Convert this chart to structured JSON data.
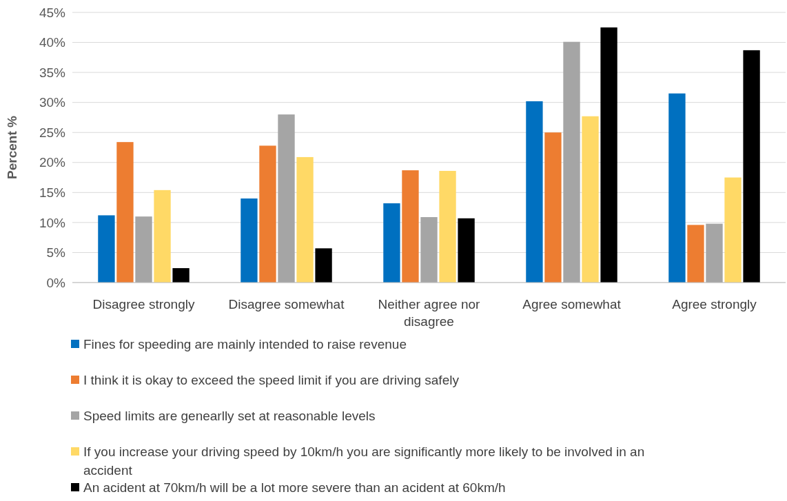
{
  "chart_data": {
    "type": "bar",
    "ylabel": "Percent %",
    "categories": [
      "Disagree strongly",
      "Disagree somewhat",
      "Neither agree nor disagree",
      "Agree somewhat",
      "Agree strongly"
    ],
    "series": [
      {
        "name": "Fines for speeding are mainly intended to raise revenue",
        "color": "#0070c0",
        "values": [
          11.2,
          14.0,
          13.2,
          30.2,
          31.5
        ]
      },
      {
        "name": "I think it is okay to exceed the speed limit if you are driving safely",
        "color": "#ed7d31",
        "values": [
          23.4,
          22.8,
          18.7,
          25.0,
          9.6
        ]
      },
      {
        "name": "Speed limits are genearlly set at reasonable levels",
        "color": "#a5a5a5",
        "values": [
          11.0,
          28.0,
          10.9,
          40.1,
          9.8
        ]
      },
      {
        "name": "If you increase your driving speed by 10km/h you are significantly more likely to be involved in an accident",
        "color": "#ffd966",
        "values": [
          15.4,
          20.9,
          18.6,
          27.7,
          17.5
        ]
      },
      {
        "name": "An acident at 70km/h will be a lot more severe than an acident at 60km/h",
        "color": "#000000",
        "values": [
          2.4,
          5.7,
          10.7,
          42.5,
          38.7
        ]
      }
    ],
    "ylim": [
      0,
      45
    ],
    "yticks": [
      {
        "value": 0,
        "label": "0%"
      },
      {
        "value": 5,
        "label": "5%"
      },
      {
        "value": 10,
        "label": "10%"
      },
      {
        "value": 15,
        "label": "15%"
      },
      {
        "value": 20,
        "label": "20%"
      },
      {
        "value": 25,
        "label": "25%"
      },
      {
        "value": 30,
        "label": "30%"
      },
      {
        "value": 35,
        "label": "35%"
      },
      {
        "value": 40,
        "label": "40%"
      },
      {
        "value": 45,
        "label": "45%"
      }
    ],
    "grid": "y",
    "legend": "bottom"
  }
}
